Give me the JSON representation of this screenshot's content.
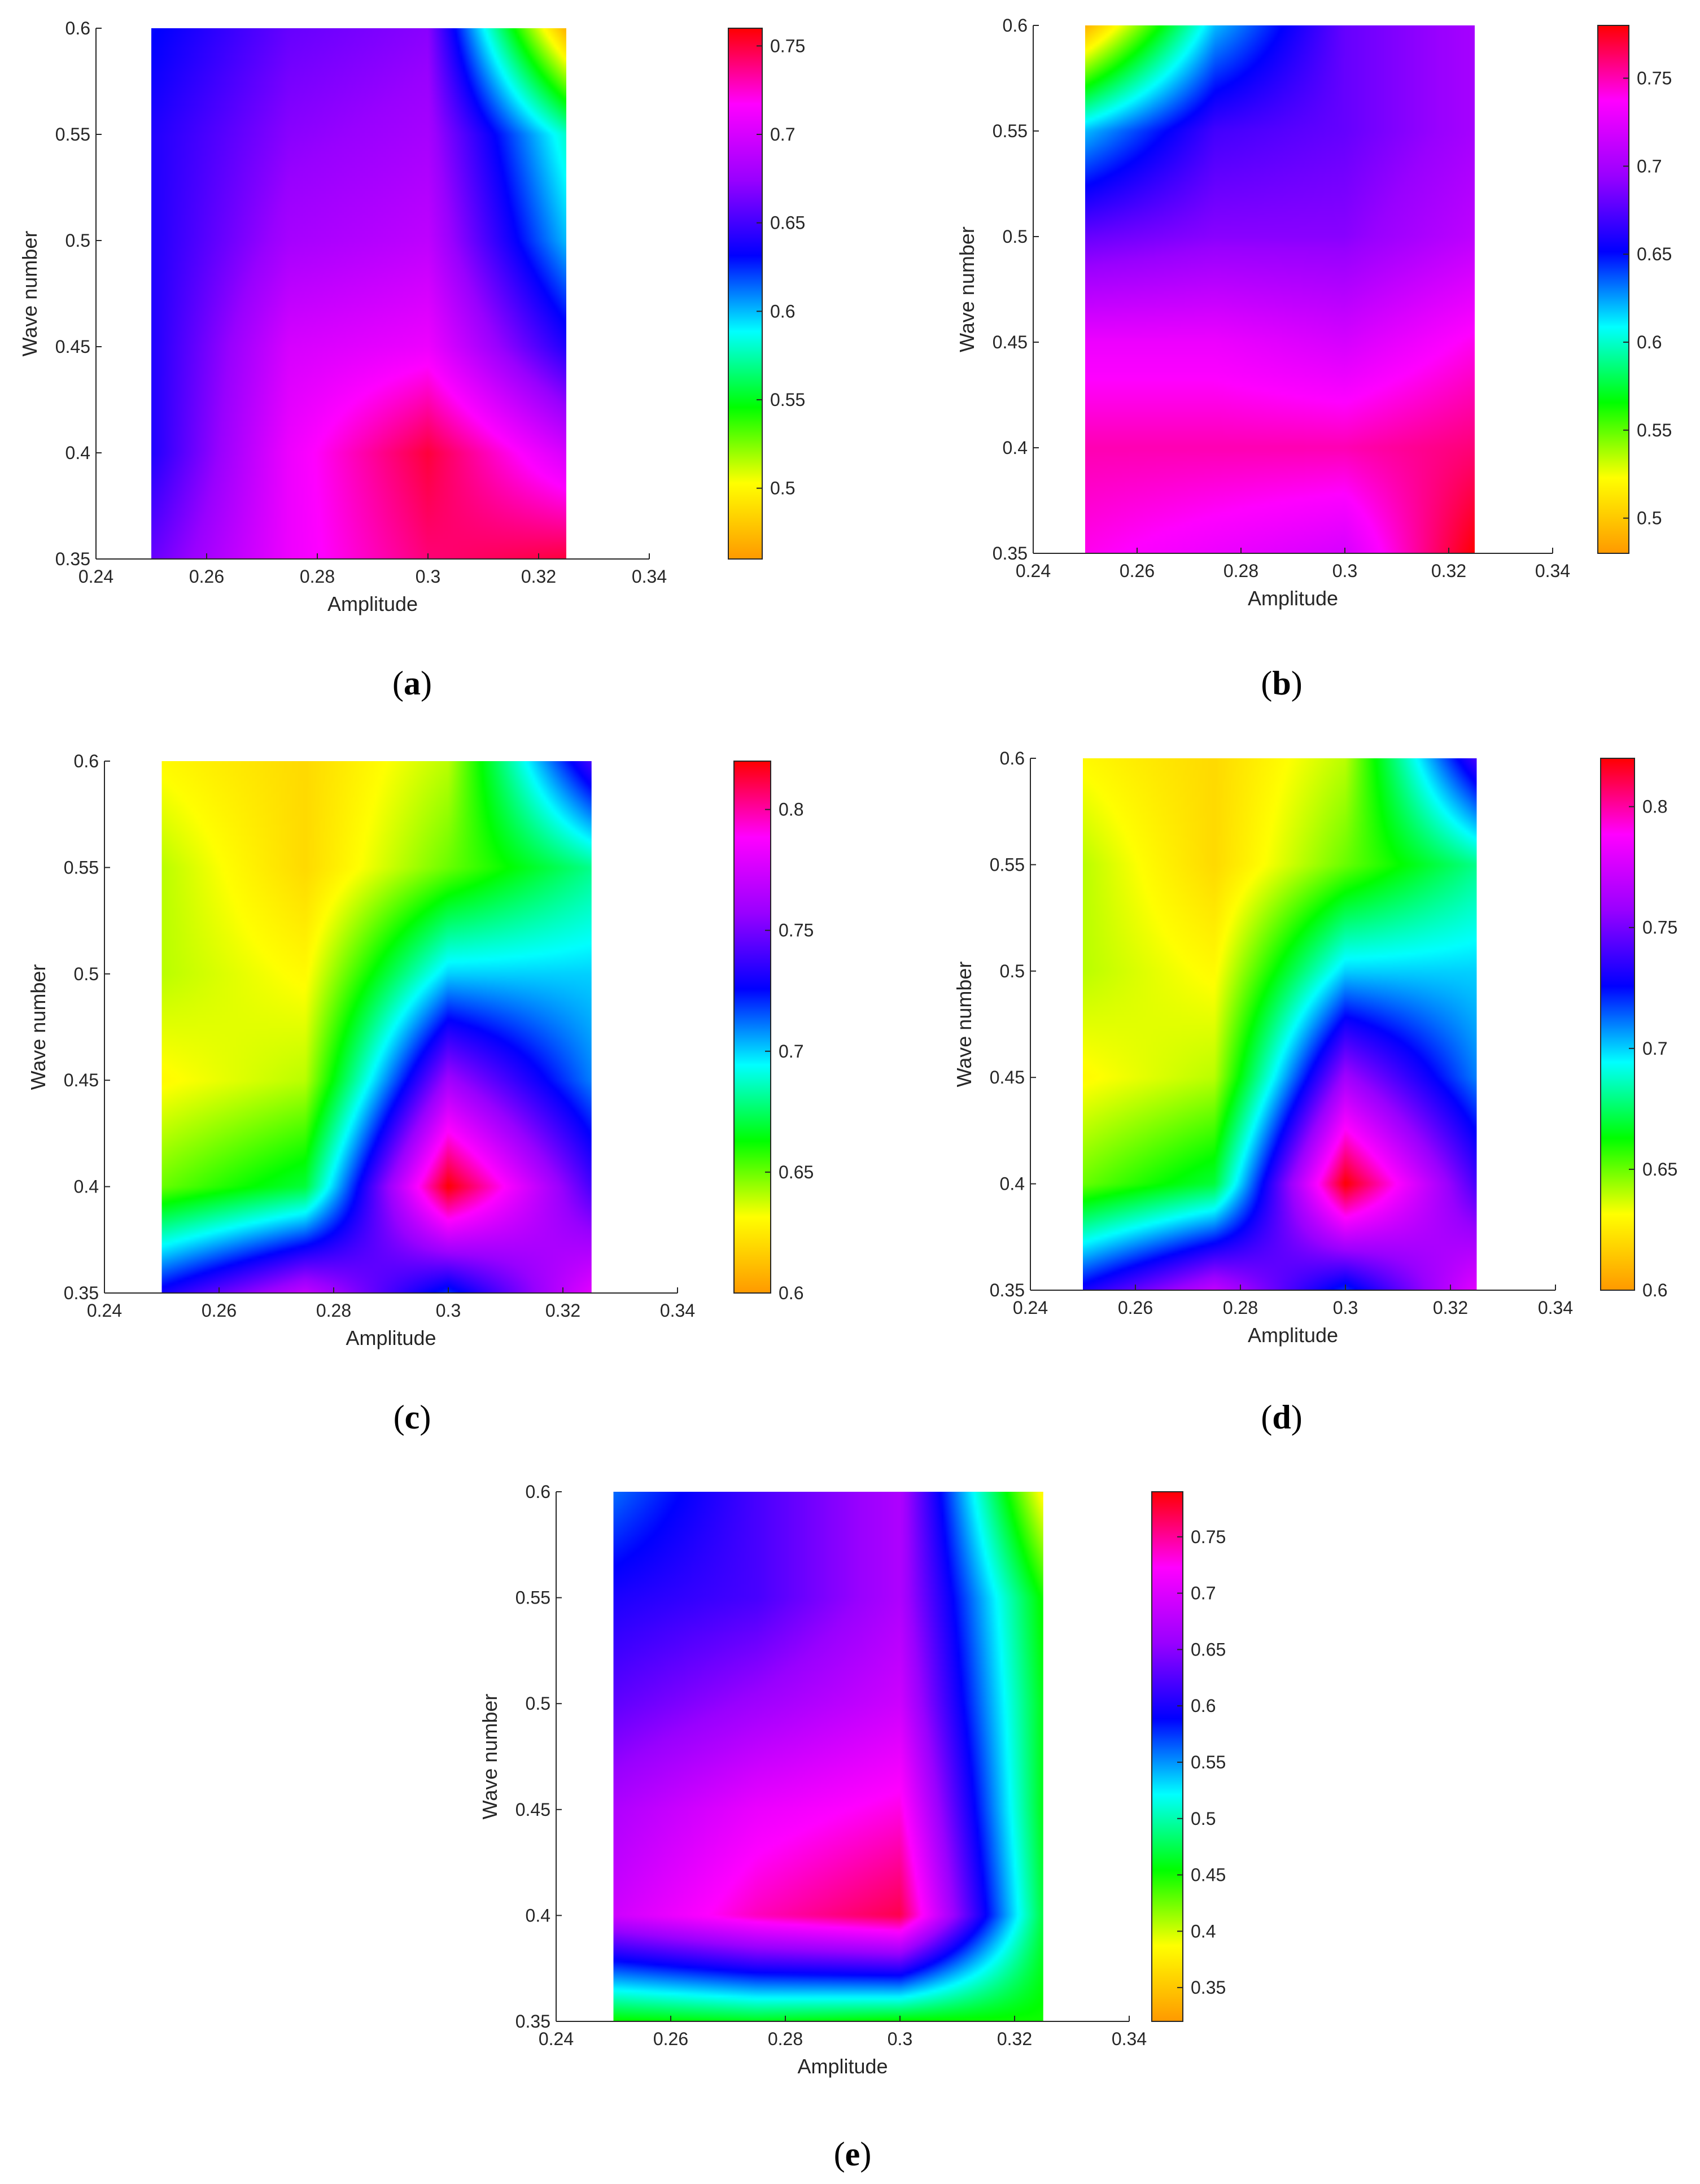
{
  "chart_data": [
    {
      "panel": "a",
      "type": "heatmap",
      "xlabel": "Amplitude",
      "ylabel": "Wave number",
      "xlim": [
        0.24,
        0.34
      ],
      "ylim": [
        0.35,
        0.6
      ],
      "xticks": [
        "0.24",
        "0.26",
        "0.28",
        "0.3",
        "0.32",
        "0.34"
      ],
      "yticks": [
        "0.35",
        "0.4",
        "0.45",
        "0.5",
        "0.55",
        "0.6"
      ],
      "x": [
        0.25,
        0.275,
        0.3,
        0.325
      ],
      "y": [
        0.35,
        0.4,
        0.45,
        0.5,
        0.55,
        0.6
      ],
      "z": [
        [
          0.66,
          0.71,
          0.74,
          0.75
        ],
        [
          0.64,
          0.71,
          0.75,
          0.7
        ],
        [
          0.64,
          0.7,
          0.71,
          0.64
        ],
        [
          0.64,
          0.68,
          0.69,
          0.6
        ],
        [
          0.64,
          0.67,
          0.68,
          0.58
        ],
        [
          0.63,
          0.66,
          0.67,
          0.47
        ]
      ],
      "colorbar": {
        "min": 0.46,
        "max": 0.76,
        "ticks": [
          "0.5",
          "0.55",
          "0.6",
          "0.65",
          "0.7",
          "0.75"
        ]
      }
    },
    {
      "panel": "b",
      "type": "heatmap",
      "xlabel": "Amplitude",
      "ylabel": "Wave number",
      "xlim": [
        0.24,
        0.34
      ],
      "ylim": [
        0.35,
        0.6
      ],
      "xticks": [
        "0.24",
        "0.26",
        "0.28",
        "0.3",
        "0.32",
        "0.34"
      ],
      "yticks": [
        "0.35",
        "0.4",
        "0.45",
        "0.5",
        "0.55",
        "0.6"
      ],
      "x": [
        0.25,
        0.275,
        0.3,
        0.325
      ],
      "y": [
        0.35,
        0.4,
        0.45,
        0.5,
        0.55,
        0.6
      ],
      "z": [
        [
          0.74,
          0.73,
          0.72,
          0.78
        ],
        [
          0.75,
          0.75,
          0.75,
          0.76
        ],
        [
          0.73,
          0.73,
          0.72,
          0.74
        ],
        [
          0.68,
          0.69,
          0.69,
          0.71
        ],
        [
          0.62,
          0.67,
          0.68,
          0.7
        ],
        [
          0.49,
          0.62,
          0.68,
          0.7
        ]
      ],
      "colorbar": {
        "min": 0.48,
        "max": 0.78,
        "ticks": [
          "0.5",
          "0.55",
          "0.6",
          "0.65",
          "0.7",
          "0.75"
        ]
      }
    },
    {
      "panel": "c",
      "type": "heatmap",
      "xlabel": "Amplitude",
      "ylabel": "Wave number",
      "xlim": [
        0.24,
        0.34
      ],
      "ylim": [
        0.35,
        0.6
      ],
      "xticks": [
        "0.24",
        "0.26",
        "0.28",
        "0.3",
        "0.32",
        "0.34"
      ],
      "yticks": [
        "0.35",
        "0.4",
        "0.45",
        "0.5",
        "0.55",
        "0.6"
      ],
      "x": [
        0.25,
        0.275,
        0.3,
        0.325
      ],
      "y": [
        0.35,
        0.4,
        0.45,
        0.5,
        0.55,
        0.6
      ],
      "z": [
        [
          0.73,
          0.77,
          0.72,
          0.78
        ],
        [
          0.65,
          0.67,
          0.82,
          0.74
        ],
        [
          0.63,
          0.64,
          0.76,
          0.71
        ],
        [
          0.64,
          0.63,
          0.7,
          0.7
        ],
        [
          0.64,
          0.62,
          0.65,
          0.68
        ],
        [
          0.63,
          0.62,
          0.64,
          0.74
        ]
      ],
      "colorbar": {
        "min": 0.6,
        "max": 0.82,
        "ticks": [
          "0.6",
          "0.65",
          "0.7",
          "0.75",
          "0.8"
        ]
      }
    },
    {
      "panel": "d",
      "type": "heatmap",
      "xlabel": "Amplitude",
      "ylabel": "Wave number",
      "xlim": [
        0.24,
        0.34
      ],
      "ylim": [
        0.35,
        0.6
      ],
      "xticks": [
        "0.24",
        "0.26",
        "0.28",
        "0.3",
        "0.32",
        "0.34"
      ],
      "yticks": [
        "0.35",
        "0.4",
        "0.45",
        "0.5",
        "0.55",
        "0.6"
      ],
      "x": [
        0.25,
        0.275,
        0.3,
        0.325
      ],
      "y": [
        0.35,
        0.4,
        0.45,
        0.5,
        0.55,
        0.6
      ],
      "z": [
        [
          0.73,
          0.77,
          0.72,
          0.78
        ],
        [
          0.65,
          0.67,
          0.82,
          0.74
        ],
        [
          0.63,
          0.64,
          0.76,
          0.71
        ],
        [
          0.64,
          0.63,
          0.7,
          0.7
        ],
        [
          0.64,
          0.62,
          0.65,
          0.68
        ],
        [
          0.63,
          0.62,
          0.64,
          0.74
        ]
      ],
      "colorbar": {
        "min": 0.6,
        "max": 0.82,
        "ticks": [
          "0.6",
          "0.65",
          "0.7",
          "0.75",
          "0.8"
        ]
      }
    },
    {
      "panel": "e",
      "type": "heatmap",
      "xlabel": "Amplitude",
      "ylabel": "Wave number",
      "xlim": [
        0.24,
        0.34
      ],
      "ylim": [
        0.35,
        0.6
      ],
      "xticks": [
        "0.24",
        "0.26",
        "0.28",
        "0.3",
        "0.32",
        "0.34"
      ],
      "yticks": [
        "0.35",
        "0.4",
        "0.45",
        "0.5",
        "0.55",
        "0.6"
      ],
      "x": [
        0.25,
        0.275,
        0.3,
        0.325
      ],
      "y": [
        0.35,
        0.4,
        0.45,
        0.5,
        0.55,
        0.6
      ],
      "z": [
        [
          0.45,
          0.46,
          0.45,
          0.45
        ],
        [
          0.69,
          0.74,
          0.77,
          0.47
        ],
        [
          0.67,
          0.71,
          0.73,
          0.46
        ],
        [
          0.63,
          0.66,
          0.69,
          0.46
        ],
        [
          0.6,
          0.62,
          0.67,
          0.45
        ],
        [
          0.56,
          0.62,
          0.67,
          0.38
        ]
      ],
      "colorbar": {
        "min": 0.32,
        "max": 0.79,
        "ticks": [
          "0.35",
          "0.4",
          "0.45",
          "0.5",
          "0.55",
          "0.6",
          "0.65",
          "0.7",
          "0.75"
        ]
      }
    }
  ],
  "panel_labels": [
    "a",
    "b",
    "c",
    "d",
    "e"
  ],
  "colormap": [
    "#ff9900",
    "#ffff00",
    "#00ff00",
    "#00ffff",
    "#0000ff",
    "#9900ff",
    "#ff00ff",
    "#ff0000"
  ]
}
